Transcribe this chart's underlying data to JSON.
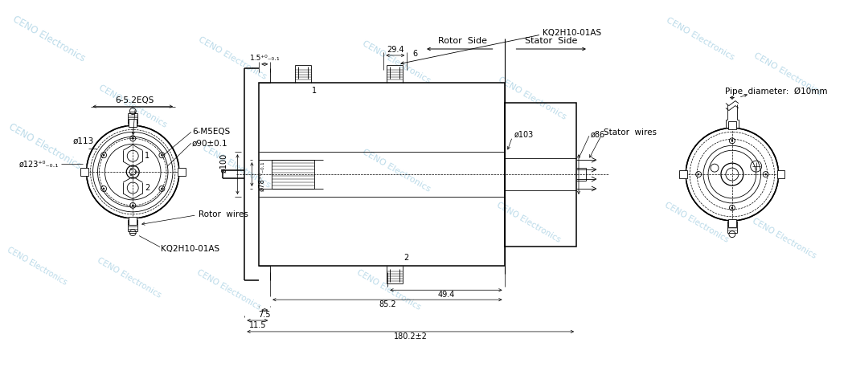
{
  "bg_color": "#ffffff",
  "line_color": "#000000",
  "wm_color": "#7ab8d4",
  "rotor_side": "Rotor  Side",
  "stator_side": "Stator  Side",
  "pipe_diam": "Pipe  diameter:  Ø10mm",
  "stator_wires": "Stator  wires",
  "rotor_wires": "Rotor  wires",
  "kq_label": "KQ2H10-01AS",
  "phi123": "ø123⁺⁰₋₀.₁",
  "phi113": "ø113",
  "m5eqs": "6-M5EQS",
  "phi90": "ø90±0.1",
  "phi100": "ø100",
  "phi78": "ø78⁺⁰₋₀.₁",
  "phi103": "ø103",
  "phi86": "ø86",
  "eqs52": "6-5.2EQS",
  "d29_4": "29.4",
  "d6": "6",
  "d1_5": "1.5⁺⁰₋₀.₁",
  "d49_4": "49.4",
  "d85_2": "85.2",
  "d180_2": "180.2±2",
  "d7_5": "7.5",
  "d11_5": "11.5"
}
